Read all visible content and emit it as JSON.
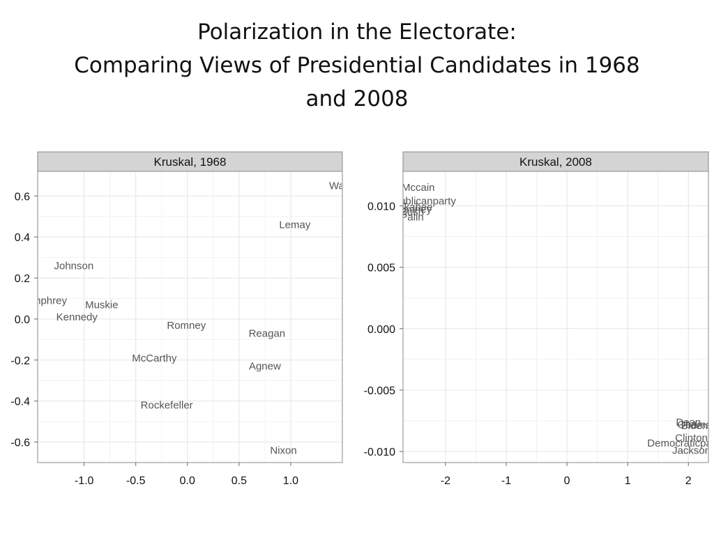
{
  "title": {
    "line1": "Polarization in the Electorate:",
    "line2": "Comparing Views of Presidential Candidates in 1968",
    "line3": "and 2008"
  },
  "chart_data": [
    {
      "type": "scatter",
      "title": "Kruskal, 1968",
      "xlim": [
        -1.45,
        1.5
      ],
      "ylim": [
        -0.7,
        0.72
      ],
      "xticks": [
        -1.0,
        -0.5,
        0.0,
        0.5,
        1.0
      ],
      "xtick_labels": [
        "-1.0",
        "-0.5",
        "0.0",
        "0.5",
        "1.0"
      ],
      "yticks": [
        0.6,
        0.4,
        0.2,
        0.0,
        -0.2,
        -0.4,
        -0.6
      ],
      "ytick_labels": [
        "0.6",
        "0.4",
        "0.2",
        "0.0",
        "-0.2",
        "-0.4",
        "-0.6"
      ],
      "grid": true,
      "points": [
        {
          "label": "Wallace",
          "x": 1.55,
          "y": 0.65
        },
        {
          "label": "Lemay",
          "x": 1.04,
          "y": 0.46
        },
        {
          "label": "Johnson",
          "x": -1.1,
          "y": 0.26
        },
        {
          "label": "Humphrey",
          "x": -1.4,
          "y": 0.09
        },
        {
          "label": "Muskie",
          "x": -0.83,
          "y": 0.07
        },
        {
          "label": "Kennedy",
          "x": -1.07,
          "y": 0.01
        },
        {
          "label": "Romney",
          "x": -0.01,
          "y": -0.03
        },
        {
          "label": "Reagan",
          "x": 0.77,
          "y": -0.07
        },
        {
          "label": "McCarthy",
          "x": -0.32,
          "y": -0.19
        },
        {
          "label": "Agnew",
          "x": 0.75,
          "y": -0.23
        },
        {
          "label": "Rockefeller",
          "x": -0.2,
          "y": -0.42
        },
        {
          "label": "Nixon",
          "x": 0.93,
          "y": -0.64
        }
      ]
    },
    {
      "type": "scatter",
      "title": "Kruskal, 2008",
      "xlim": [
        -2.7,
        2.33
      ],
      "ylim": [
        -0.0109,
        0.0128
      ],
      "xticks": [
        -2,
        -1,
        0,
        1,
        2
      ],
      "xtick_labels": [
        "-2",
        "-1",
        "0",
        "1",
        "2"
      ],
      "yticks": [
        0.01,
        0.005,
        0.0,
        -0.005,
        -0.01
      ],
      "ytick_labels": [
        "0.010",
        "0.005",
        "0.000",
        "-0.005",
        "-0.010"
      ],
      "grid": true,
      "points": [
        {
          "label": "Mccain",
          "x": -2.45,
          "y": 0.0115
        },
        {
          "label": "Republicanparty",
          "x": -2.45,
          "y": 0.0104
        },
        {
          "label": "Huckabee",
          "x": -2.6,
          "y": 0.0099
        },
        {
          "label": "Romney",
          "x": -2.55,
          "y": 0.0097
        },
        {
          "label": "Bush",
          "x": -2.55,
          "y": 0.0095
        },
        {
          "label": "Palin",
          "x": -2.55,
          "y": 0.0091
        },
        {
          "label": "Dean",
          "x": 2.0,
          "y": -0.0076
        },
        {
          "label": "Biden",
          "x": 2.1,
          "y": -0.0079
        },
        {
          "label": "Obama",
          "x": 2.1,
          "y": -0.0078
        },
        {
          "label": "Clinton",
          "x": 2.05,
          "y": -0.0089
        },
        {
          "label": "Democraticparty",
          "x": 1.95,
          "y": -0.0093
        },
        {
          "label": "Jackson",
          "x": 2.05,
          "y": -0.0099
        }
      ]
    }
  ]
}
